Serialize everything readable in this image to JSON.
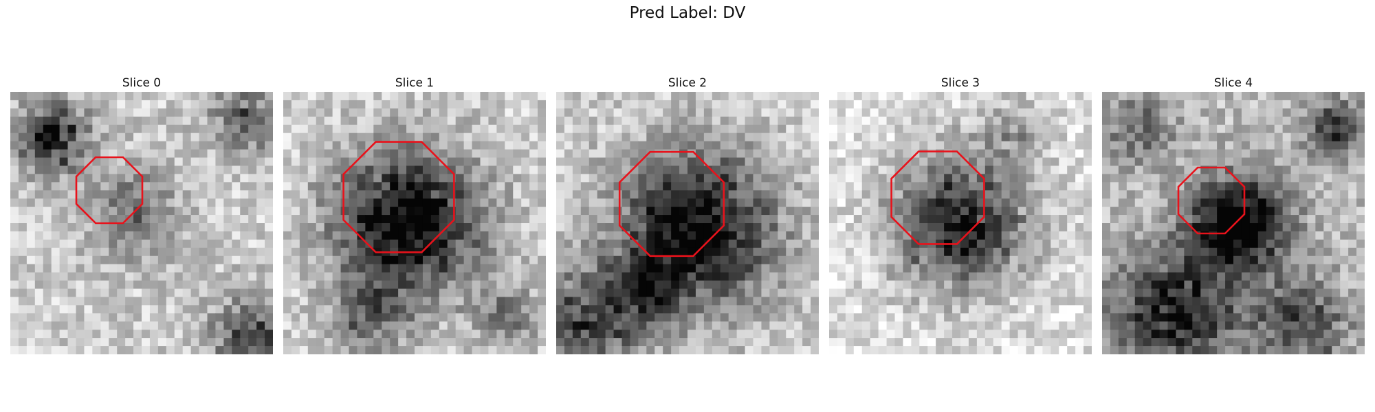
{
  "figure": {
    "title": "Pred Label: DV"
  },
  "colors": {
    "contour": "#e8121b",
    "background": "#ffffff"
  },
  "slices": [
    {
      "title": "Slice 0"
    },
    {
      "title": "Slice 1"
    },
    {
      "title": "Slice 2"
    },
    {
      "title": "Slice 3"
    },
    {
      "title": "Slice 4"
    }
  ]
}
